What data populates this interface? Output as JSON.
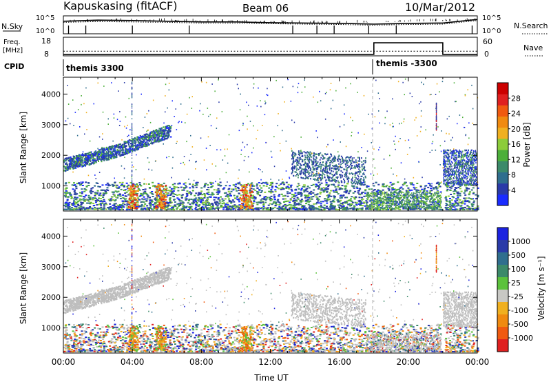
{
  "header": {
    "station": "Kapuskasing (fitACF)",
    "beam": "Beam 06",
    "date": "10/Mar/2012"
  },
  "strip_panels": {
    "nsky_label": "N.Sky",
    "nsearch_label": "N.Search",
    "freq_label_line1": "Freq.",
    "freq_label_line2": "[MHz]",
    "nave_label": "Nave",
    "cpid_label": "CPID",
    "noise_ticks_left": [
      "10^5",
      "10^0"
    ],
    "noise_ticks_right": [
      "10^5",
      "10^0"
    ],
    "freq_ticks": [
      "18",
      "8"
    ],
    "nave_ticks": [
      "60",
      "0"
    ],
    "cpid_segments": [
      {
        "label": "themis 3300",
        "start_hour": 0
      },
      {
        "label": "themis -3300",
        "start_hour": 18
      }
    ]
  },
  "colors": {
    "power_scale": [
      "#1a2bff",
      "#2a3aa8",
      "#2f6e8e",
      "#3c8a6a",
      "#4caf3a",
      "#8ccc3a",
      "#f0b020",
      "#f08a10",
      "#f05a10",
      "#e02020",
      "#cc0000"
    ],
    "velocity_scale": [
      "#1b22e0",
      "#2a3aa8",
      "#2f6e8e",
      "#3c8a6a",
      "#5cc23c",
      "#c8c8c4",
      "#f0b020",
      "#f08a10",
      "#f05a10",
      "#e02020"
    ],
    "ground_scatter": "#bebebe"
  },
  "chart_data": [
    {
      "type": "line",
      "panel": "noise",
      "series": [
        {
          "name": "N.Sky",
          "x": [
            0,
            2,
            4,
            6,
            8,
            10,
            12,
            14,
            16,
            18,
            20,
            22,
            24
          ],
          "values": [
            3.5,
            3.8,
            3.7,
            3.5,
            3.3,
            3.3,
            3.1,
            3.0,
            2.9,
            2.7,
            2.9,
            3.0,
            4.0
          ]
        },
        {
          "name": "N.Search",
          "x": [
            0,
            2,
            4,
            6,
            8,
            10,
            12,
            14,
            16,
            18,
            20,
            22,
            24
          ],
          "values": [
            3.2,
            3.4,
            3.3,
            3.2,
            3.0,
            3.0,
            2.8,
            2.7,
            2.6,
            2.4,
            2.6,
            2.7,
            3.7
          ]
        }
      ],
      "ylim": [
        0,
        5
      ]
    },
    {
      "type": "line",
      "panel": "freq_nave",
      "series": [
        {
          "name": "Freq.",
          "x": [
            0,
            18,
            18,
            22,
            22,
            24
          ],
          "values": [
            10.5,
            10.5,
            10.5,
            10.5,
            10.5,
            10.5
          ]
        },
        {
          "name": "Nave",
          "x": [
            0,
            18,
            18,
            22,
            22,
            24
          ],
          "values": [
            5,
            5,
            42,
            42,
            5,
            5
          ]
        }
      ]
    },
    {
      "type": "heatmap",
      "panel": "power",
      "title": "",
      "xlabel": "",
      "ylabel": "Slant Range [km]",
      "xlim": [
        0,
        24
      ],
      "ylim": [
        180,
        4550
      ],
      "y_ticks": [
        "1000",
        "2000",
        "3000",
        "4000"
      ],
      "colorbar_label": "Power [dB]",
      "colorbar_ticks": [
        "4",
        "8",
        "12",
        "16",
        "20",
        "24",
        "28"
      ]
    },
    {
      "type": "heatmap",
      "panel": "velocity",
      "xlabel": "Time UT",
      "ylabel": "Slant Range [km]",
      "xlim": [
        0,
        24
      ],
      "ylim": [
        180,
        4550
      ],
      "x_ticks": [
        "00:00",
        "04:00",
        "08:00",
        "12:00",
        "16:00",
        "20:00",
        "00:00"
      ],
      "y_ticks": [
        "1000",
        "2000",
        "3000",
        "4000"
      ],
      "colorbar_label": "Velocity [m s⁻¹]",
      "colorbar_ticks": [
        "1000",
        "500",
        "100",
        "25",
        "-25",
        "-100",
        "-500",
        "-1000"
      ]
    }
  ]
}
